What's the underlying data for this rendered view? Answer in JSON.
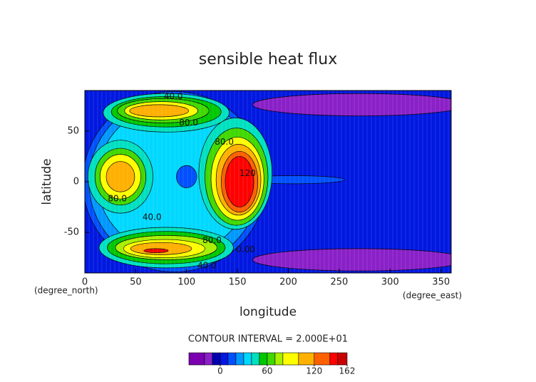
{
  "chart_data": {
    "type": "contour",
    "title": "sensible heat flux",
    "x_label": "longitude",
    "y_label": "latitude",
    "x_units": "(degree_east)",
    "y_units": "(degree_north)",
    "xlim": [
      0,
      360
    ],
    "ylim": [
      -90,
      90
    ],
    "xticks": [
      0,
      50,
      100,
      150,
      200,
      250,
      300,
      350
    ],
    "yticks": [
      -50,
      0,
      50
    ],
    "contour_interval": "CONTOUR INTERVAL = 2.000E+01",
    "colorbar": {
      "lim": [
        -40,
        162
      ],
      "ticks": [
        0,
        60,
        120,
        162
      ],
      "levels": [
        -40,
        -20,
        -10,
        0,
        10,
        20,
        30,
        40,
        50,
        60,
        70,
        80,
        100,
        120,
        140,
        150
      ],
      "colors": [
        "#7a00b0",
        "#8a20c8",
        "#0000b0",
        "#0018e0",
        "#0050ff",
        "#0098ff",
        "#00d8ff",
        "#00e0c0",
        "#00c800",
        "#40d800",
        "#a8f000",
        "#ffff00",
        "#ffb000",
        "#ff6000",
        "#ff0000",
        "#c80000"
      ]
    },
    "background_level": 0,
    "regions": [
      {
        "level": -20,
        "lon": 270,
        "lat": 76,
        "rx": 105,
        "ry": 11
      },
      {
        "level": -20,
        "lon": 270,
        "lat": -77,
        "rx": 105,
        "ry": 11
      },
      {
        "level": 10,
        "lon": 88,
        "lat": 0,
        "rx": 90,
        "ry": 89
      },
      {
        "level": 10,
        "lon": 205,
        "lat": 2,
        "rx": 50,
        "ry": 4
      },
      {
        "level": 20,
        "lon": 88,
        "lat": 0,
        "rx": 84,
        "ry": 84
      },
      {
        "level": 30,
        "lon": 88,
        "lat": 2,
        "rx": 76,
        "ry": 74
      },
      {
        "level": 10,
        "lon": 100,
        "lat": 5,
        "rx": 10,
        "ry": 11
      },
      {
        "level": 40,
        "lon": 80,
        "lat": 68,
        "rx": 62,
        "ry": 19
      },
      {
        "level": 50,
        "lon": 80,
        "lat": 69,
        "rx": 54,
        "ry": 15
      },
      {
        "level": 60,
        "lon": 77,
        "lat": 70,
        "rx": 45,
        "ry": 12
      },
      {
        "level": 80,
        "lon": 75,
        "lat": 70,
        "rx": 36,
        "ry": 9
      },
      {
        "level": 100,
        "lon": 73,
        "lat": 70,
        "rx": 29,
        "ry": 6
      },
      {
        "level": 40,
        "lon": 80,
        "lat": -65,
        "rx": 66,
        "ry": 20
      },
      {
        "level": 50,
        "lon": 80,
        "lat": -65,
        "rx": 58,
        "ry": 16
      },
      {
        "level": 70,
        "lon": 80,
        "lat": -65,
        "rx": 50,
        "ry": 12
      },
      {
        "level": 80,
        "lon": 78,
        "lat": -66,
        "rx": 40,
        "ry": 9
      },
      {
        "level": 100,
        "lon": 75,
        "lat": -66,
        "rx": 30,
        "ry": 6
      },
      {
        "level": 140,
        "lon": 70,
        "lat": -68,
        "rx": 12,
        "ry": 2
      },
      {
        "level": 40,
        "lon": 148,
        "lat": 8,
        "rx": 36,
        "ry": 55
      },
      {
        "level": 60,
        "lon": 149,
        "lat": 5,
        "rx": 31,
        "ry": 48
      },
      {
        "level": 80,
        "lon": 150,
        "lat": 3,
        "rx": 26,
        "ry": 41
      },
      {
        "level": 100,
        "lon": 151,
        "lat": 2,
        "rx": 22,
        "ry": 35
      },
      {
        "level": 120,
        "lon": 152,
        "lat": 0,
        "rx": 18,
        "ry": 30
      },
      {
        "level": 140,
        "lon": 152,
        "lat": 0,
        "rx": 14,
        "ry": 25
      },
      {
        "level": 40,
        "lon": 35,
        "lat": 5,
        "rx": 32,
        "ry": 36
      },
      {
        "level": 60,
        "lon": 35,
        "lat": 5,
        "rx": 25,
        "ry": 28
      },
      {
        "level": 80,
        "lon": 35,
        "lat": 5,
        "rx": 20,
        "ry": 22
      },
      {
        "level": 100,
        "lon": 35,
        "lat": 5,
        "rx": 14,
        "ry": 15
      }
    ],
    "contour_labels": [
      {
        "text": "40.0",
        "lon": 87,
        "lat": 84
      },
      {
        "text": "80.0",
        "lon": 102,
        "lat": 58
      },
      {
        "text": "80.0",
        "lon": 137,
        "lat": 39
      },
      {
        "text": "120",
        "lon": 160,
        "lat": 8
      },
      {
        "text": "80.0",
        "lon": 32,
        "lat": -17
      },
      {
        "text": "40.0",
        "lon": 66,
        "lat": -35
      },
      {
        "text": "80.0",
        "lon": 125,
        "lat": -58
      },
      {
        "text": "40.0",
        "lon": 120,
        "lat": -83
      },
      {
        "text": "0.00",
        "lon": 158,
        "lat": -67
      }
    ]
  }
}
